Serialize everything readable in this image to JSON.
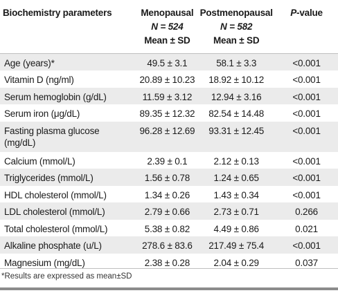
{
  "header": {
    "col1": "Biochemistry parameters",
    "col2_line1": "Menopausal",
    "col2_line2": "N = 524",
    "col2_line3": "Mean ± SD",
    "col3_line1": "Postmenopausal",
    "col3_line2": "N = 582",
    "col3_line3": "Mean ± SD",
    "col4_italic": "P",
    "col4_rest": "-value"
  },
  "rows": [
    {
      "param": "Age (years)*",
      "meno": "49.5 ± 3.1",
      "post": "58.1 ± 3.3",
      "p": "<0.001"
    },
    {
      "param": "Vitamin D (ng/ml)",
      "meno": "20.89 ± 10.23",
      "post": "18.92 ± 10.12",
      "p": "<0.001"
    },
    {
      "param": "Serum hemoglobin (g/dL)",
      "meno": "11.59 ± 3.12",
      "post": "12.94 ± 3.16",
      "p": "<0.001"
    },
    {
      "param": "Serum iron (μg/dL)",
      "meno": "89.35 ± 12.32",
      "post": "82.54 ± 14.48",
      "p": "<0.001"
    },
    {
      "param_line1": "Fasting plasma glucose",
      "param_line2": "(mg/dL)",
      "meno": "96.28 ± 12.69",
      "post": "93.31 ± 12.45",
      "p": "<0.001"
    },
    {
      "param": "Calcium (mmol/L)",
      "meno": "2.39 ± 0.1",
      "post": "2.12 ± 0.13",
      "p": "<0.001"
    },
    {
      "param": "Triglycerides (mmol/L)",
      "meno": "1.56 ± 0.78",
      "post": "1.24 ± 0.65",
      "p": "<0.001"
    },
    {
      "param": "HDL cholesterol (mmol/L)",
      "meno": "1.34 ± 0.26",
      "post": "1.43 ± 0.34",
      "p": "<0.001"
    },
    {
      "param": "LDL cholesterol (mmol/L)",
      "meno": "2.79 ± 0.66",
      "post": "2.73 ± 0.71",
      "p": "0.266"
    },
    {
      "param": "Total cholesterol (mmol/L)",
      "meno": "5.38 ± 0.82",
      "post": "4.49 ± 0.86",
      "p": "0.021"
    },
    {
      "param": "Alkaline phosphate (u/L)",
      "meno": "278.6 ± 83.6",
      "post": "217.49 ± 75.4",
      "p": "<0.001"
    },
    {
      "param": "Magnesium (mg/dL)",
      "meno": "2.38 ± 0.28",
      "post": "2.04 ± 0.29",
      "p": "0.037"
    }
  ],
  "footnote": "*Results are expressed as mean±SD"
}
